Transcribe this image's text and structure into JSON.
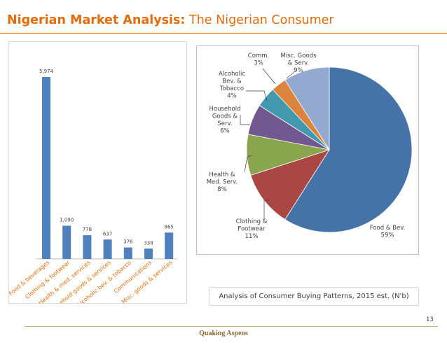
{
  "header": {
    "title_bold": "Nigerian Market Analysis:",
    "title_light": "The Nigerian Consumer"
  },
  "caption": "Analysis of Consumer Buying Patterns, 2015 est. (N'b)",
  "page_number": "13",
  "footer": "Quaking Aspens",
  "colors": {
    "accent": "#e46c0a",
    "bar": "#4f81bd"
  },
  "chart_data": [
    {
      "type": "bar",
      "categories": [
        "Food & beverages",
        "Clothing & footwear",
        "Health & med. services",
        "Household goods & services",
        "Alcoholic bev. & tobacco",
        "Communications",
        "Misc. goods & services"
      ],
      "values": [
        5974,
        1090,
        778,
        637,
        376,
        338,
        865
      ],
      "value_labels": [
        "5,974",
        "1,090",
        "778",
        "637",
        "376",
        "338",
        "865"
      ],
      "grid": false
    },
    {
      "type": "pie",
      "slices": [
        {
          "label": [
            "Food & Bev.",
            "59%"
          ],
          "value": 59,
          "color": "#4572a7"
        },
        {
          "label": [
            "Clothing &",
            "Footwear",
            "11%"
          ],
          "value": 11,
          "color": "#aa4643"
        },
        {
          "label": [
            "Health &",
            "Med. Serv.",
            "8%"
          ],
          "value": 8,
          "color": "#89a54e"
        },
        {
          "label": [
            "Household",
            "Goods &",
            "Serv.",
            "6%"
          ],
          "value": 6,
          "color": "#71588f"
        },
        {
          "label": [
            "Alcoholic",
            "Bev. &",
            "Tobacco",
            "4%"
          ],
          "value": 4,
          "color": "#4198af"
        },
        {
          "label": [
            "Comm.",
            "3%"
          ],
          "value": 3,
          "color": "#db843d"
        },
        {
          "label": [
            "Misc. Goods",
            "& Serv.",
            "9%"
          ],
          "value": 9,
          "color": "#93a9cf"
        }
      ]
    }
  ]
}
